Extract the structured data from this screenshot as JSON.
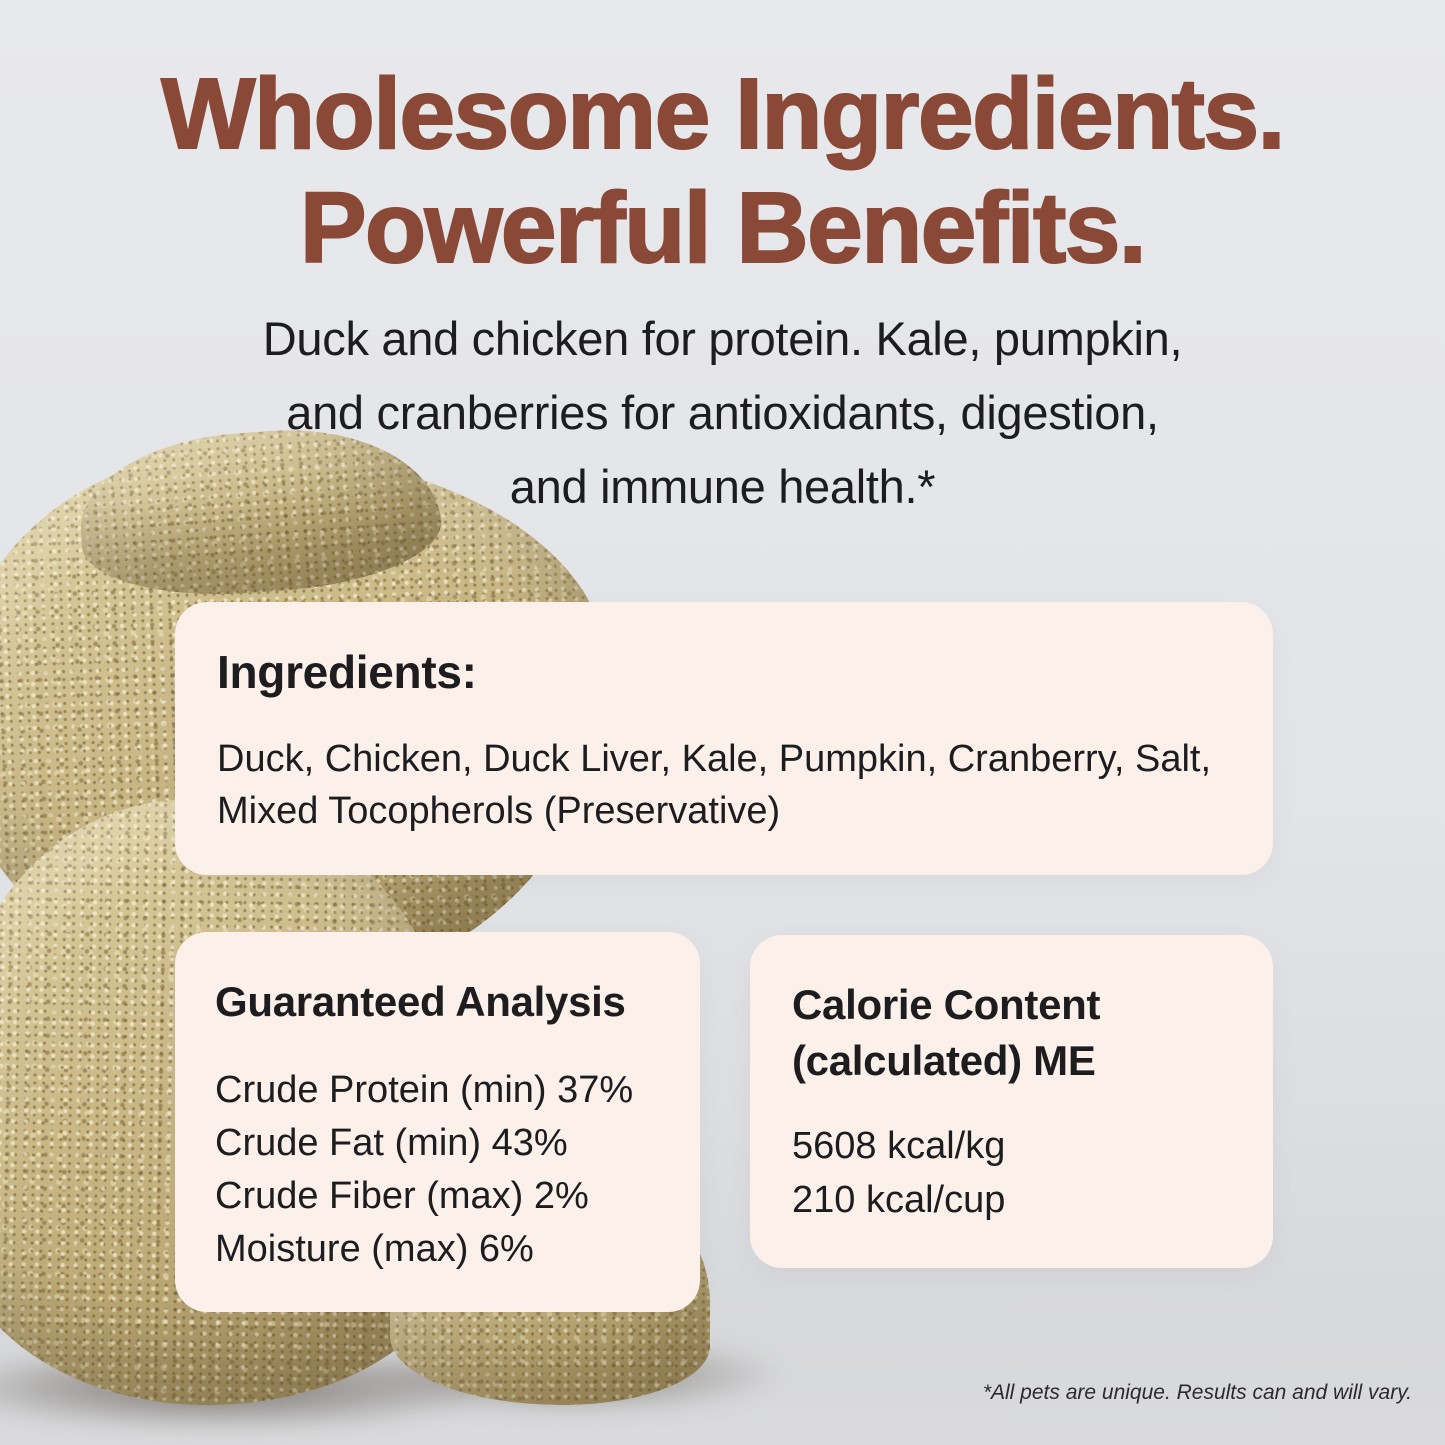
{
  "page": {
    "headline": {
      "lines": [
        "Wholesome Ingredients.",
        "Powerful Benefits."
      ]
    },
    "subheadline": {
      "lines": [
        "Duck and chicken for protein. Kale, pumpkin,",
        "and cranberries for antioxidants, digestion,",
        "and immune health.*"
      ]
    },
    "footnote": "*All pets are unique. Results can and will vary."
  },
  "cards": {
    "ingredients": {
      "title": "Ingredients:",
      "lines": [
        "Duck, Chicken, Duck Liver, Kale, Pumpkin, Cranberry, Salt,",
        "Mixed Tocopherols (Preservative)"
      ]
    },
    "guaranteed_analysis": {
      "title": "Guaranteed Analysis",
      "rows": [
        "Crude Protein (min) 37%",
        "Crude Fat (min) 43%",
        "Crude Fiber (max) 2%",
        "Moisture (max) 6%"
      ]
    },
    "calorie_content": {
      "title_lines": [
        "Calorie Content",
        "(calculated) ME"
      ],
      "rows": [
        "5608 kcal/kg",
        "210 kcal/cup"
      ]
    }
  },
  "photo": {
    "label": "stacked-freeze-dried-patties"
  },
  "colors": {
    "headline_brown": "#8a4836",
    "card_background": "#fcf0ea",
    "body_text": "#1d1d1f",
    "background_top": "#e6e7ea",
    "background_bottom": "#d8d9dc"
  }
}
